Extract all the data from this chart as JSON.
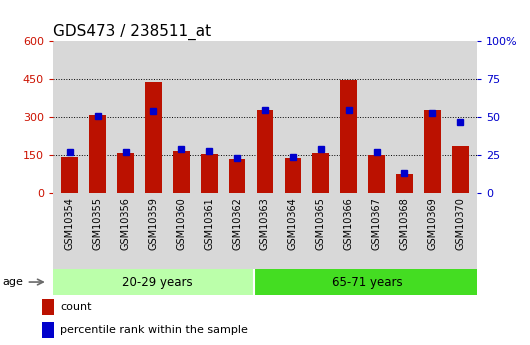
{
  "title": "GDS473 / 238511_at",
  "categories": [
    "GSM10354",
    "GSM10355",
    "GSM10356",
    "GSM10359",
    "GSM10360",
    "GSM10361",
    "GSM10362",
    "GSM10363",
    "GSM10364",
    "GSM10365",
    "GSM10366",
    "GSM10367",
    "GSM10368",
    "GSM10369",
    "GSM10370"
  ],
  "counts": [
    145,
    310,
    160,
    438,
    165,
    155,
    135,
    330,
    140,
    160,
    448,
    150,
    75,
    330,
    185
  ],
  "percentiles": [
    27,
    51,
    27,
    54,
    29,
    28,
    23,
    55,
    24,
    29,
    55,
    27,
    13,
    53,
    47
  ],
  "n_group1": 7,
  "n_group2": 8,
  "group1_label": "20-29 years",
  "group2_label": "65-71 years",
  "age_label": "age",
  "ylim_left": [
    0,
    600
  ],
  "ylim_right": [
    0,
    100
  ],
  "yticks_left": [
    0,
    150,
    300,
    450,
    600
  ],
  "yticks_right": [
    0,
    25,
    50,
    75,
    100
  ],
  "ytick_right_labels": [
    "0",
    "25",
    "50",
    "75",
    "100%"
  ],
  "bar_color": "#bb1100",
  "dot_color": "#0000cc",
  "group1_bg": "#bbffaa",
  "group2_bg": "#44dd22",
  "plot_bg": "#d8d8d8",
  "legend_count_label": "count",
  "legend_pct_label": "percentile rank within the sample",
  "title_fontsize": 11,
  "tick_fontsize": 8,
  "left_color": "#cc1100",
  "right_color": "#0000cc",
  "gridline_color": "black",
  "gridline_lw": 0.7,
  "gridline_yticks": [
    150,
    300,
    450
  ]
}
